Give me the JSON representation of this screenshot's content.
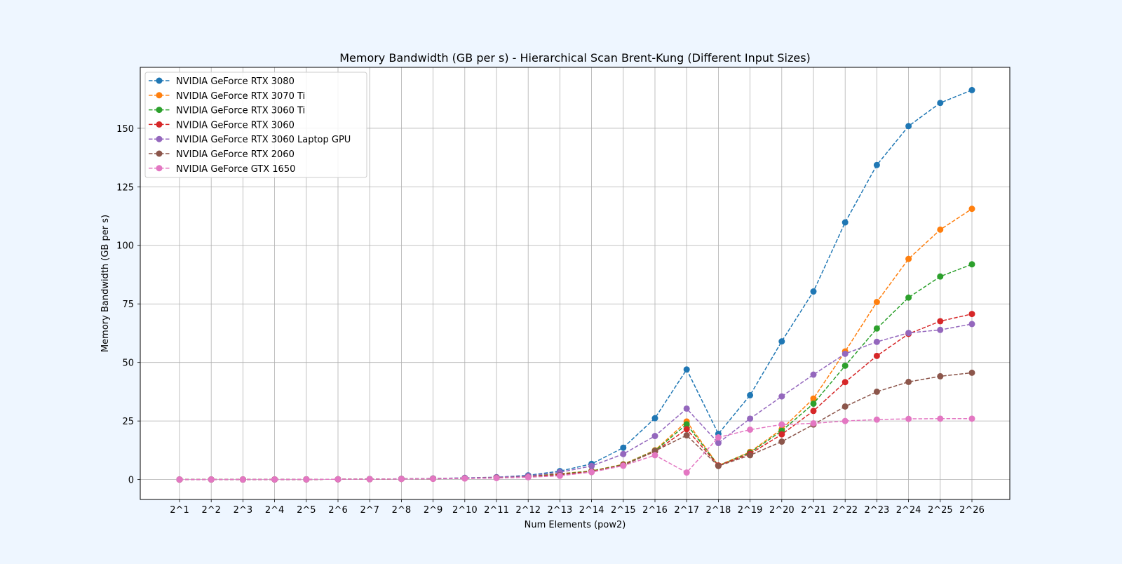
{
  "chart_data": {
    "type": "line",
    "title": "Memory Bandwidth (GB per s) - Hierarchical Scan Brent-Kung (Different Input Sizes)",
    "xlabel": "Num Elements (pow2)",
    "ylabel": "Memory Bandwidth (GB per s)",
    "categories": [
      "2^1",
      "2^2",
      "2^3",
      "2^4",
      "2^5",
      "2^6",
      "2^7",
      "2^8",
      "2^9",
      "2^10",
      "2^11",
      "2^12",
      "2^13",
      "2^14",
      "2^15",
      "2^16",
      "2^17",
      "2^18",
      "2^19",
      "2^20",
      "2^21",
      "2^22",
      "2^23",
      "2^24",
      "2^25",
      "2^26"
    ],
    "ylim": [
      -8.5,
      176
    ],
    "yticks": [
      0,
      25,
      50,
      75,
      100,
      125,
      150
    ],
    "grid": true,
    "legend_position": "upper-left",
    "line_style": "dashed",
    "marker": "circle",
    "series": [
      {
        "name": "NVIDIA GeForce RTX 3080",
        "color": "#1f77b4",
        "values": [
          0.01,
          0.02,
          0.03,
          0.05,
          0.08,
          0.12,
          0.2,
          0.3,
          0.45,
          0.7,
          1.0,
          1.8,
          3.6,
          6.7,
          13.6,
          26.2,
          47.0,
          19.5,
          36.0,
          59.0,
          80.3,
          109.8,
          134.3,
          150.9,
          160.8,
          166.3
        ]
      },
      {
        "name": "NVIDIA GeForce RTX 3070 Ti",
        "color": "#ff7f0e",
        "values": [
          0.01,
          0.02,
          0.03,
          0.05,
          0.08,
          0.12,
          0.18,
          0.28,
          0.4,
          0.6,
          0.9,
          1.3,
          2.5,
          3.7,
          6.5,
          12.5,
          24.8,
          6.0,
          11.8,
          21.5,
          34.6,
          54.7,
          75.8,
          94.2,
          106.7,
          115.6
        ]
      },
      {
        "name": "NVIDIA GeForce RTX 3060 Ti",
        "color": "#2ca02c",
        "values": [
          0.01,
          0.02,
          0.03,
          0.05,
          0.08,
          0.12,
          0.18,
          0.28,
          0.4,
          0.6,
          0.9,
          1.3,
          2.4,
          3.6,
          6.4,
          12.3,
          23.6,
          6.0,
          11.5,
          20.8,
          32.4,
          48.6,
          64.5,
          77.7,
          86.7,
          91.9
        ]
      },
      {
        "name": "NVIDIA GeForce RTX 3060",
        "color": "#d62728",
        "values": [
          0.01,
          0.02,
          0.03,
          0.05,
          0.08,
          0.12,
          0.18,
          0.27,
          0.38,
          0.55,
          0.85,
          1.2,
          2.2,
          3.4,
          6.2,
          12.0,
          21.5,
          6.0,
          11.0,
          19.3,
          29.3,
          41.6,
          52.8,
          62.2,
          67.6,
          70.7
        ]
      },
      {
        "name": "NVIDIA GeForce RTX 3060 Laptop GPU",
        "color": "#9467bd",
        "values": [
          0.01,
          0.02,
          0.03,
          0.05,
          0.08,
          0.12,
          0.2,
          0.3,
          0.45,
          0.7,
          1.0,
          1.6,
          3.1,
          5.8,
          10.9,
          18.6,
          30.3,
          15.6,
          26.0,
          35.5,
          44.8,
          53.7,
          58.8,
          62.6,
          63.9,
          66.4
        ]
      },
      {
        "name": "NVIDIA GeForce RTX 2060",
        "color": "#8c564b",
        "values": [
          0.01,
          0.02,
          0.03,
          0.05,
          0.08,
          0.12,
          0.17,
          0.26,
          0.37,
          0.5,
          0.75,
          1.1,
          1.8,
          3.2,
          6.0,
          12.2,
          18.9,
          5.8,
          10.4,
          16.2,
          23.5,
          31.2,
          37.5,
          41.7,
          44.1,
          45.6
        ]
      },
      {
        "name": "NVIDIA GeForce GTX 1650",
        "color": "#e377c2",
        "values": [
          0.01,
          0.02,
          0.03,
          0.05,
          0.08,
          0.12,
          0.17,
          0.25,
          0.33,
          0.45,
          0.65,
          1.0,
          1.6,
          3.2,
          5.9,
          10.4,
          3.0,
          18.0,
          21.3,
          23.5,
          24.0,
          25.0,
          25.6,
          25.9,
          26.0,
          26.0
        ]
      }
    ]
  }
}
